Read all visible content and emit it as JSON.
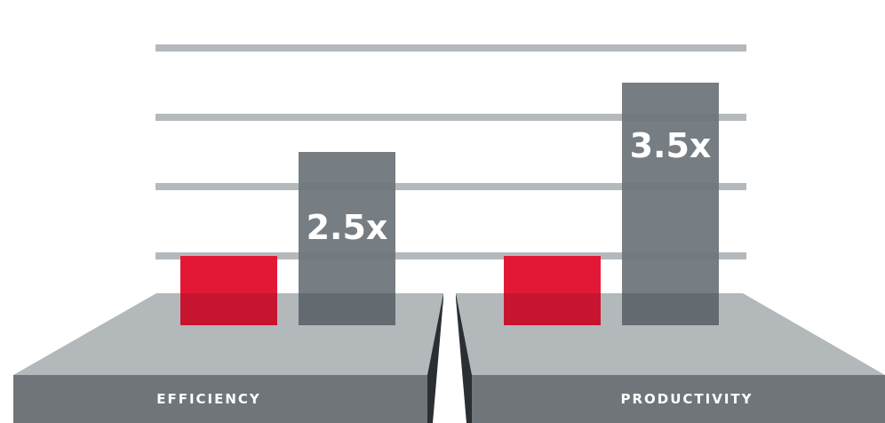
{
  "chart_data": {
    "type": "bar",
    "categories": [
      "EFFICIENCY",
      "PRODUCTIVITY"
    ],
    "series": [
      {
        "values": [
          1,
          1
        ]
      },
      {
        "values": [
          2.5,
          3.5
        ]
      }
    ],
    "data_labels": [
      "",
      "",
      "2.5x",
      "3.5x"
    ],
    "ylim": [
      0,
      4
    ],
    "grid": true,
    "legend": "none"
  },
  "colors": {
    "baseline_bar": "#e31837",
    "multiplier_bar": "#6f767c",
    "gridline": "#b0b5b9",
    "platform_top": "#b3b8bb",
    "platform_front": "#707579",
    "platform_gap": "#2b2f33",
    "label_text": "#ffffff"
  }
}
